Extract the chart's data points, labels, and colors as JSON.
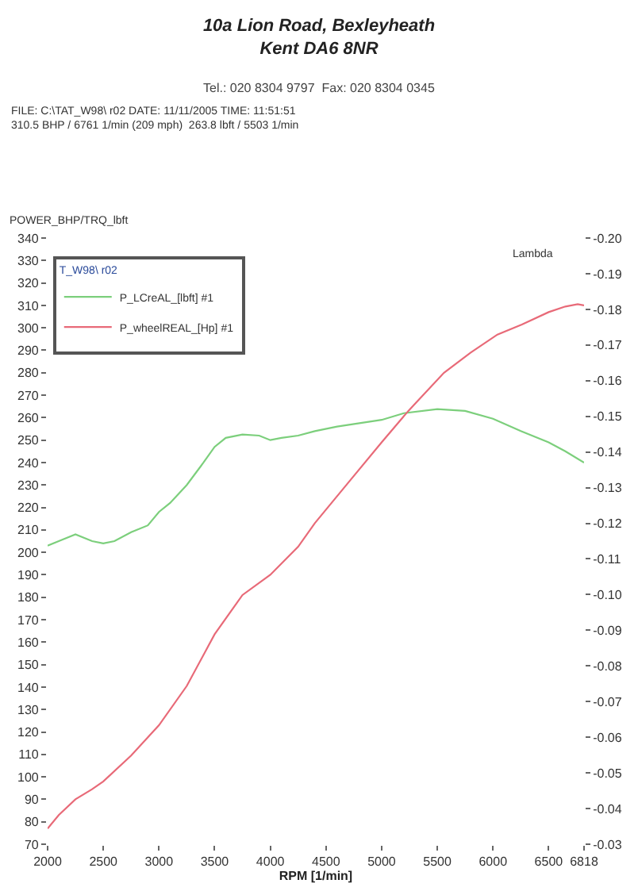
{
  "chart_data": {
    "type": "line",
    "title": "10a Lion Road, Bexleyheath\nKent DA6 8NR",
    "subtitle": "Tel.: 020 8304 9797  Fax: 020 8304 0345",
    "annotations": [
      "FILE: C:\\TAT_W98\\ r02 DATE: 11/11/2005 TIME: 11:51:51",
      "310.5 BHP / 6761 1/min (209 mph)  263.8 lbft / 5503 1/min"
    ],
    "xlabel": "RPM [1/min]",
    "ylabel": "POWER_BHP/TRQ_lbft",
    "y2label": "Lambda",
    "legend_title": "T_W98\\ r02",
    "series": [
      {
        "name": "P_LCreAL_[lbft] #1",
        "color": "#7ccf7c",
        "x": [
          2000,
          2100,
          2250,
          2400,
          2500,
          2600,
          2750,
          2900,
          3000,
          3100,
          3250,
          3400,
          3500,
          3600,
          3750,
          3900,
          4000,
          4100,
          4250,
          4400,
          4600,
          4800,
          5000,
          5200,
          5500,
          5750,
          6000,
          6250,
          6500,
          6650,
          6818
        ],
        "values": [
          203,
          205,
          208,
          205,
          204,
          205,
          209,
          212,
          218,
          222,
          230,
          240,
          247,
          251,
          252.5,
          252,
          250,
          251,
          252,
          254,
          256,
          257.5,
          259,
          262,
          263.8,
          263,
          259.5,
          254,
          249,
          245,
          240
        ]
      },
      {
        "name": "P_wheelREAL_[Hp] #1",
        "color": "#e86a78",
        "x": [
          2000,
          2100,
          2250,
          2400,
          2500,
          2750,
          3000,
          3250,
          3500,
          3750,
          4000,
          4250,
          4400,
          4700,
          5000,
          5240,
          5560,
          5800,
          6040,
          6260,
          6500,
          6650,
          6761,
          6818
        ],
        "values": [
          77,
          83,
          90,
          94.5,
          98,
          109.5,
          123,
          140.5,
          163.5,
          181,
          190,
          202.5,
          213,
          231,
          249,
          263,
          280,
          289,
          297,
          301.5,
          307,
          309.5,
          310.5,
          310
        ]
      }
    ],
    "xlim": [
      2000,
      6818
    ],
    "xticks": [
      2000,
      2500,
      3000,
      3500,
      4000,
      4500,
      5000,
      5500,
      6000,
      6500,
      6818
    ],
    "ylim": [
      70,
      340
    ],
    "yticks": [
      70,
      80,
      90,
      100,
      110,
      120,
      130,
      140,
      150,
      160,
      170,
      180,
      190,
      200,
      210,
      220,
      230,
      240,
      250,
      260,
      270,
      280,
      290,
      300,
      310,
      320,
      330,
      340
    ],
    "y2lim": [
      -0.03,
      -0.2
    ],
    "y2ticks": [
      -0.03,
      -0.04,
      -0.05,
      -0.06,
      -0.07,
      -0.08,
      -0.09,
      {
        "value": -0.1,
        "label": "-0.10"
      },
      -0.11,
      -0.12,
      -0.13,
      -0.14,
      -0.15,
      -0.16,
      -0.17,
      -0.18,
      -0.19,
      {
        "value": -0.2,
        "label": "-0.20"
      }
    ],
    "legend": "top left",
    "grid": false
  }
}
